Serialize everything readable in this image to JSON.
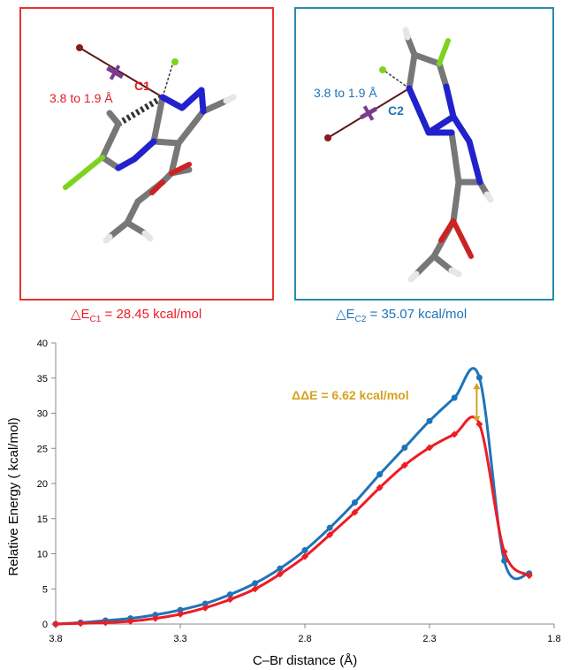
{
  "panels": {
    "c1": {
      "border_color": "#e8332f",
      "atom_label": "C1",
      "distance_label": "3.8 to 1.9 Å",
      "energy_symbol": "△E",
      "energy_sub": "C1",
      "energy_value": " = 28.45 kcal/mol",
      "text_color": "#ee1c25"
    },
    "c2": {
      "border_color": "#2a8bb0",
      "atom_label": "C2",
      "distance_label": "3.8 to 1.9 Å",
      "energy_symbol": "△E",
      "energy_sub": "C2",
      "energy_value": " = 35.07 kcal/mol",
      "text_color": "#1f74b8"
    }
  },
  "chart_data": {
    "type": "line",
    "xlabel": "C–Br distance (Å)",
    "ylabel": "Relative Energy ( kcal/mol)",
    "xlim": [
      3.8,
      1.8
    ],
    "ylim": [
      0,
      40
    ],
    "xticks": [
      "3.8",
      "3.3",
      "2.8",
      "2.3",
      "1.8"
    ],
    "xtick_values": [
      3.8,
      3.3,
      2.8,
      2.3,
      1.8
    ],
    "yticks": [
      0,
      5,
      10,
      15,
      20,
      25,
      30,
      35,
      40
    ],
    "annotation": "ΔΔE = 6.62 kcal/mol",
    "annotation_color": "#d6a21c",
    "series": [
      {
        "name": "C2",
        "color": "#1f74b8",
        "marker": "circle",
        "x": [
          3.8,
          3.7,
          3.6,
          3.5,
          3.4,
          3.3,
          3.2,
          3.1,
          3.0,
          2.9,
          2.8,
          2.7,
          2.6,
          2.5,
          2.4,
          2.3,
          2.2,
          2.1,
          2.0,
          1.9
        ],
        "y": [
          0,
          0.2,
          0.5,
          0.8,
          1.3,
          2.0,
          2.9,
          4.2,
          5.8,
          7.9,
          10.5,
          13.7,
          17.3,
          21.3,
          25.1,
          28.9,
          32.2,
          35.07,
          9.0,
          7.2
        ]
      },
      {
        "name": "C1",
        "color": "#ee1c25",
        "marker": "diamond",
        "x": [
          3.8,
          3.7,
          3.6,
          3.5,
          3.4,
          3.3,
          3.2,
          3.1,
          3.0,
          2.9,
          2.8,
          2.7,
          2.6,
          2.5,
          2.4,
          2.3,
          2.2,
          2.1,
          2.0,
          1.9
        ],
        "y": [
          0,
          0.1,
          0.2,
          0.4,
          0.8,
          1.4,
          2.3,
          3.5,
          5.0,
          7.1,
          9.6,
          12.7,
          15.9,
          19.4,
          22.6,
          25.1,
          27.0,
          28.45,
          10.3,
          6.9
        ]
      }
    ]
  }
}
